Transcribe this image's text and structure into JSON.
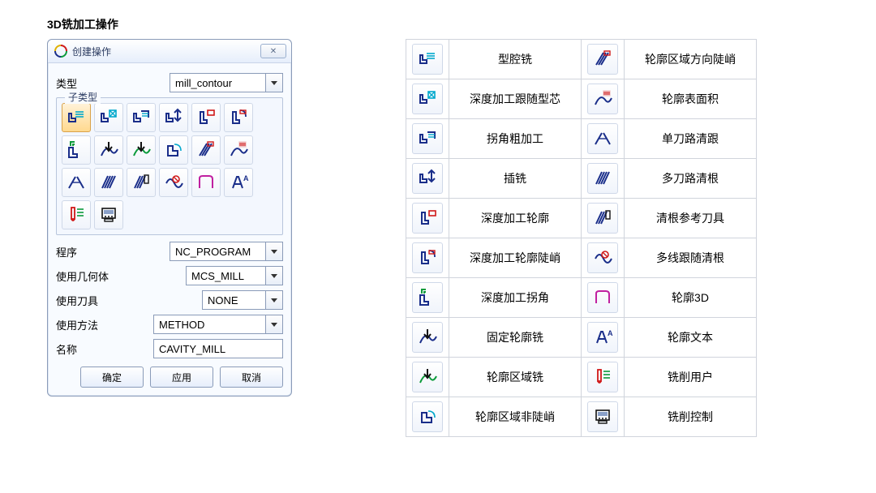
{
  "page": {
    "title": "3D铣加工操作"
  },
  "dialog": {
    "title": "创建操作",
    "close_glyph": "✕",
    "fields": {
      "type_label": "类型",
      "type_value": "mill_contour",
      "subtype_label": "子类型",
      "program_label": "程序",
      "program_value": "NC_PROGRAM",
      "geometry_label": "使用几何体",
      "geometry_value": "MCS_MILL",
      "tool_label": "使用刀具",
      "tool_value": "NONE",
      "method_label": "使用方法",
      "method_value": "METHOD",
      "name_label": "名称",
      "name_value": "CAVITY_MILL"
    },
    "buttons": {
      "ok": "确定",
      "apply": "应用",
      "cancel": "取消"
    },
    "subtype_icons": [
      {
        "id": "cavity-mill",
        "svg": "cavity",
        "selected": true
      },
      {
        "id": "plunge-milling",
        "svg": "plunge"
      },
      {
        "id": "corner-rough",
        "svg": "corner_rough"
      },
      {
        "id": "rest-milling",
        "svg": "rest"
      },
      {
        "id": "zlevel-profile",
        "svg": "zlevel"
      },
      {
        "id": "zlevel-profile-steep",
        "svg": "zlevel_steep"
      },
      {
        "id": "zlevel-corner",
        "svg": "zlevel_corner"
      },
      {
        "id": "fixed-contour",
        "svg": "fixed_contour"
      },
      {
        "id": "contour-area",
        "svg": "contour_area"
      },
      {
        "id": "contour-area-nonsteep",
        "svg": "contour_area_nonsteep"
      },
      {
        "id": "contour-area-dir-steep",
        "svg": "contour_area_dir_steep"
      },
      {
        "id": "contour-surface-area",
        "svg": "contour_surface_area"
      },
      {
        "id": "flowcut-single",
        "svg": "flowcut_single"
      },
      {
        "id": "flowcut-multiple",
        "svg": "flowcut_multiple"
      },
      {
        "id": "flowcut-ref-tool",
        "svg": "flowcut_ref"
      },
      {
        "id": "flowcut-smooth",
        "svg": "flowcut_smooth"
      },
      {
        "id": "profile-3d",
        "svg": "profile3d"
      },
      {
        "id": "contour-text",
        "svg": "contour_text"
      },
      {
        "id": "mill-user",
        "svg": "mill_user"
      },
      {
        "id": "mill-control",
        "svg": "mill_control"
      }
    ]
  },
  "reference": {
    "rows": [
      {
        "left_svg": "cavity",
        "left_label": "型腔铣",
        "right_svg": "contour_area_dir_steep",
        "right_label": "轮廓区域方向陡峭"
      },
      {
        "left_svg": "plunge",
        "left_label": "深度加工跟随型芯",
        "right_svg": "contour_surface_area",
        "right_label": "轮廓表面积"
      },
      {
        "left_svg": "corner_rough",
        "left_label": "拐角粗加工",
        "right_svg": "flowcut_single",
        "right_label": "单刀路清跟"
      },
      {
        "left_svg": "rest",
        "left_label": "插铣",
        "right_svg": "flowcut_multiple",
        "right_label": "多刀路清根"
      },
      {
        "left_svg": "zlevel",
        "left_label": "深度加工轮廓",
        "right_svg": "flowcut_ref",
        "right_label": "清根参考刀具"
      },
      {
        "left_svg": "zlevel_steep",
        "left_label": "深度加工轮廓陡峭",
        "right_svg": "flowcut_smooth",
        "right_label": "多线跟随清根"
      },
      {
        "left_svg": "zlevel_corner",
        "left_label": "深度加工拐角",
        "right_svg": "profile3d",
        "right_label": "轮廓3D"
      },
      {
        "left_svg": "fixed_contour",
        "left_label": "固定轮廓铣",
        "right_svg": "contour_text",
        "right_label": "轮廓文本"
      },
      {
        "left_svg": "contour_area",
        "left_label": "轮廓区域铣",
        "right_svg": "mill_user",
        "right_label": "铣削用户"
      },
      {
        "left_svg": "contour_area_nonsteep",
        "left_label": "轮廓区域非陡峭",
        "right_svg": "mill_control",
        "right_label": "铣削控制"
      }
    ]
  },
  "colors": {
    "navy": "#1a2e8a",
    "cyan": "#00a8cc",
    "red": "#d01818",
    "green": "#0a9a3a",
    "orange": "#e07000",
    "magenta": "#c020a0",
    "black": "#111111"
  }
}
